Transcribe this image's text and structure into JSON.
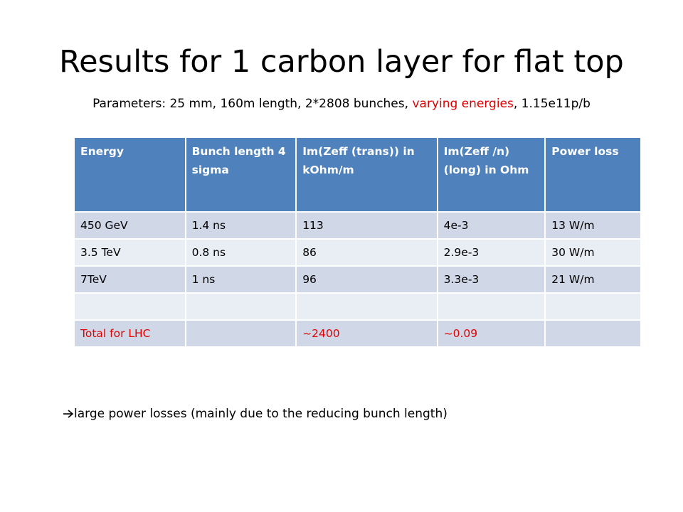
{
  "header": {
    "title": "Results for 1 carbon layer for flat top",
    "parameters": [
      "Parameters: 25 mm, 160m length, 2*2808 bunches, ",
      "varying energies",
      ", 1.15e11p/b"
    ]
  },
  "table": {
    "header": [
      "Energy",
      "Bunch length 4 sigma",
      "Im(Zeff (trans)) in kOhm/m",
      "Im(Zeff /n) (long) in Ohm",
      "Power loss"
    ],
    "rows": [
      [
        "450 GeV",
        "1.4 ns",
        "113",
        "4e-3",
        "13 W/m"
      ],
      [
        "3.5 TeV",
        "0.8 ns",
        "86",
        "2.9e-3",
        "30 W/m"
      ],
      [
        "7TeV",
        "1 ns",
        "96",
        "3.3e-3",
        "21 W/m"
      ],
      [
        null,
        null,
        null,
        null,
        null
      ],
      [
        "Total for LHC",
        null,
        "~2400",
        "~0.09",
        null
      ]
    ]
  },
  "note": "large power losses (mainly due to the reducing bunch length)"
}
